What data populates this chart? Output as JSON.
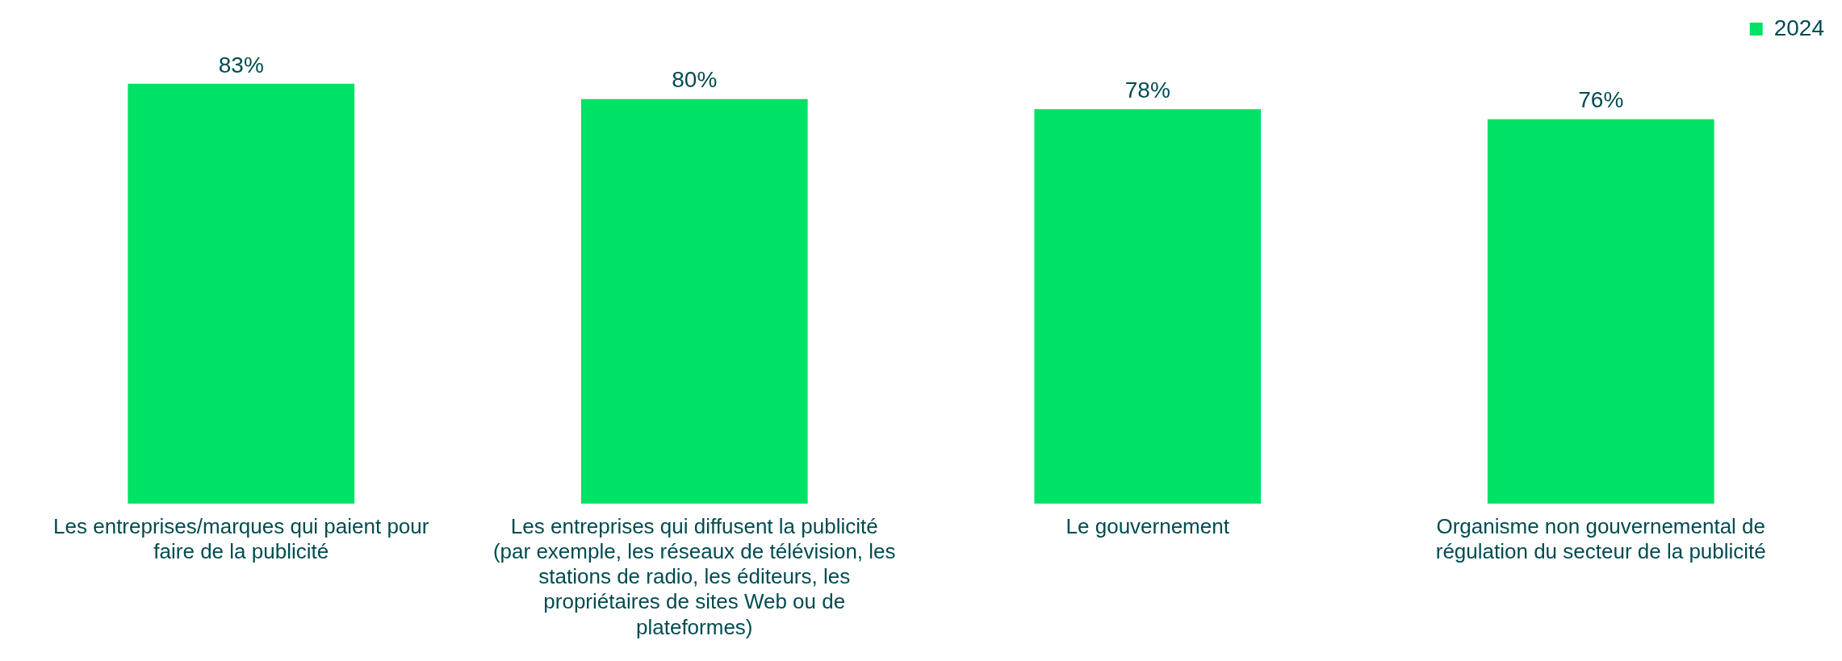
{
  "chart_data": {
    "type": "bar",
    "categories": [
      "Les entreprises/marques qui paient pour faire de la publicité",
      "Les entreprises qui diffusent la publicité (par exemple, les réseaux de télévision, les stations de radio, les éditeurs, les propriétaires de sites Web ou de plateformes)",
      "Le gouvernement",
      "Organisme non gouvernemental de régulation du secteur de la publicité"
    ],
    "series": [
      {
        "name": "2024",
        "color": "#00e266",
        "values": [
          83,
          80,
          78,
          76
        ],
        "value_labels": [
          "83%",
          "80%",
          "78%",
          "76%"
        ]
      }
    ],
    "legend": "top right",
    "grid": false
  }
}
